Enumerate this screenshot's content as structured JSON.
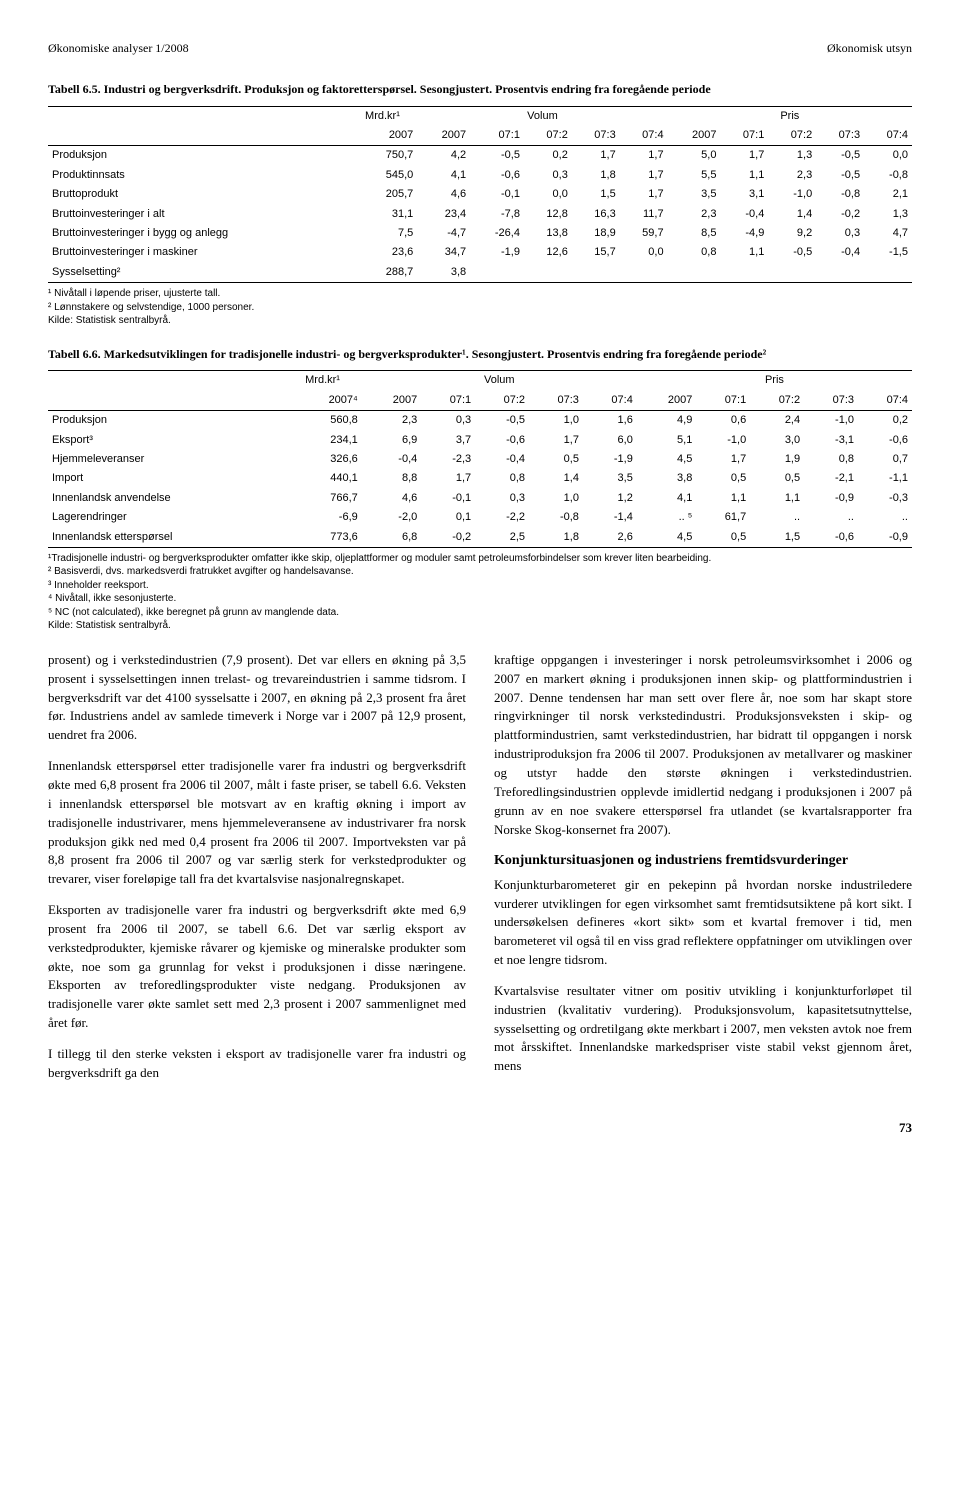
{
  "header": {
    "left": "Økonomiske analyser 1/2008",
    "right": "Økonomisk utsyn"
  },
  "table1": {
    "title": "Tabell 6.5. Industri og bergverksdrift. Produksjon og faktoretterspørsel. Sesongjustert. Prosentvis endring fra foregående periode",
    "header1_c1": "Mrd.kr¹",
    "header1_volum": "Volum",
    "header1_pris": "Pris",
    "header2": [
      "",
      "2007",
      "2007",
      "07:1",
      "07:2",
      "07:3",
      "07:4",
      "2007",
      "07:1",
      "07:2",
      "07:3",
      "07:4"
    ],
    "rows": [
      [
        "Produksjon",
        "750,7",
        "4,2",
        "-0,5",
        "0,2",
        "1,7",
        "1,7",
        "5,0",
        "1,7",
        "1,3",
        "-0,5",
        "0,0"
      ],
      [
        "Produktinnsats",
        "545,0",
        "4,1",
        "-0,6",
        "0,3",
        "1,8",
        "1,7",
        "5,5",
        "1,1",
        "2,3",
        "-0,5",
        "-0,8"
      ],
      [
        "Bruttoprodukt",
        "205,7",
        "4,6",
        "-0,1",
        "0,0",
        "1,5",
        "1,7",
        "3,5",
        "3,1",
        "-1,0",
        "-0,8",
        "2,1"
      ],
      [
        "Bruttoinvesteringer i alt",
        "31,1",
        "23,4",
        "-7,8",
        "12,8",
        "16,3",
        "11,7",
        "2,3",
        "-0,4",
        "1,4",
        "-0,2",
        "1,3"
      ],
      [
        "Bruttoinvesteringer i bygg og anlegg",
        "7,5",
        "-4,7",
        "-26,4",
        "13,8",
        "18,9",
        "59,7",
        "8,5",
        "-4,9",
        "9,2",
        "0,3",
        "4,7"
      ],
      [
        "Bruttoinvesteringer i maskiner",
        "23,6",
        "34,7",
        "-1,9",
        "12,6",
        "15,7",
        "0,0",
        "0,8",
        "1,1",
        "-0,5",
        "-0,4",
        "-1,5"
      ],
      [
        "Sysselsetting²",
        "288,7",
        "3,8",
        "",
        "",
        "",
        "",
        "",
        "",
        "",
        "",
        ""
      ]
    ],
    "footnotes": [
      "¹ Nivåtall i løpende priser, ujusterte tall.",
      "² Lønnstakere og selvstendige, 1000 personer.",
      "Kilde: Statistisk sentralbyrå."
    ]
  },
  "table2": {
    "title": "Tabell 6.6. Markedsutviklingen for tradisjonelle industri- og bergverksprodukter¹. Sesongjustert. Prosentvis endring fra foregående periode²",
    "header1_c1": "Mrd.kr¹",
    "header1_volum": "Volum",
    "header1_pris": "Pris",
    "header2": [
      "",
      "2007⁴",
      "2007",
      "07:1",
      "07:2",
      "07:3",
      "07:4",
      "2007",
      "07:1",
      "07:2",
      "07:3",
      "07:4"
    ],
    "rows": [
      [
        "Produksjon",
        "560,8",
        "2,3",
        "0,3",
        "-0,5",
        "1,0",
        "1,6",
        "4,9",
        "0,6",
        "2,4",
        "-1,0",
        "0,2"
      ],
      [
        "Eksport³",
        "234,1",
        "6,9",
        "3,7",
        "-0,6",
        "1,7",
        "6,0",
        "5,1",
        "-1,0",
        "3,0",
        "-3,1",
        "-0,6"
      ],
      [
        "Hjemmeleveranser",
        "326,6",
        "-0,4",
        "-2,3",
        "-0,4",
        "0,5",
        "-1,9",
        "4,5",
        "1,7",
        "1,9",
        "0,8",
        "0,7"
      ],
      [
        "Import",
        "440,1",
        "8,8",
        "1,7",
        "0,8",
        "1,4",
        "3,5",
        "3,8",
        "0,5",
        "0,5",
        "-2,1",
        "-1,1"
      ],
      [
        "Innenlandsk anvendelse",
        "766,7",
        "4,6",
        "-0,1",
        "0,3",
        "1,0",
        "1,2",
        "4,1",
        "1,1",
        "1,1",
        "-0,9",
        "-0,3"
      ],
      [
        "Lagerendringer",
        "-6,9",
        "-2,0",
        "0,1",
        "-2,2",
        "-0,8",
        "-1,4",
        ".. ⁵",
        "61,7",
        "..",
        "..",
        ".."
      ],
      [
        "Innenlandsk etterspørsel",
        "773,6",
        "6,8",
        "-0,2",
        "2,5",
        "1,8",
        "2,6",
        "4,5",
        "0,5",
        "1,5",
        "-0,6",
        "-0,9"
      ]
    ],
    "footnotes": [
      "¹Tradisjonelle industri- og bergverksprodukter omfatter ikke skip, oljeplattformer og moduler samt petroleumsforbindelser som krever liten bearbeiding.",
      "² Basisverdi, dvs. markedsverdi fratrukket avgifter og handelsavanse.",
      "³ Inneholder reeksport.",
      "⁴ Nivåtall, ikke sesonjusterte.",
      "⁵ NC (not calculated), ikke beregnet på grunn av manglende data.",
      "Kilde: Statistisk sentralbyrå."
    ]
  },
  "body": {
    "left": [
      "prosent) og i verkstedindustrien (7,9 prosent). Det var ellers en økning på 3,5 prosent i sysselsettingen innen trelast- og trevareindustrien i samme tidsrom. I bergverksdrift var det 4100 sysselsatte i 2007, en økning på 2,3 prosent fra året før. Industriens andel av samlede timeverk i Norge var i 2007 på 12,9 prosent, uendret fra 2006.",
      "Innenlandsk etterspørsel etter tradisjonelle varer fra industri og bergverksdrift økte med 6,8 prosent fra 2006 til 2007, målt i faste priser, se tabell 6.6. Veksten i innenlandsk etterspørsel ble motsvart av en kraftig økning i import av tradisjonelle industrivarer, mens hjemmeleveransene av industrivarer fra norsk produksjon gikk ned med 0,4 prosent fra 2006 til 2007. Importveksten var på 8,8 prosent fra 2006 til 2007 og var særlig sterk for verkstedprodukter og trevarer, viser foreløpige tall fra det kvartalsvise nasjonalregnskapet.",
      "Eksporten av tradisjonelle varer fra industri og bergverksdrift økte med 6,9 prosent fra 2006 til 2007, se tabell 6.6. Det var særlig eksport av verkstedprodukter, kjemiske råvarer og kjemiske og mineralske produkter som økte, noe som ga grunnlag for vekst i produksjonen i disse næringene. Eksporten av treforedlingsprodukter viste nedgang. Produksjonen av tradisjonelle varer økte samlet sett med 2,3 prosent i 2007 sammenlignet med året før.",
      "I tillegg til den sterke veksten i eksport av tradisjonelle varer fra industri og bergverksdrift ga den"
    ],
    "right": [
      "kraftige oppgangen i investeringer i norsk petroleumsvirksomhet i 2006 og 2007 en markert økning i produksjonen innen skip- og plattformindustrien i 2007. Denne tendensen har man sett over flere år, noe som har skapt store ringvirkninger til norsk verkstedindustri. Produksjonsveksten i skip- og plattformindustrien, samt verkstedindustrien, har bidratt til oppgangen i norsk industriproduksjon fra 2006 til 2007. Produksjonen av metallvarer og maskiner og utstyr hadde den største økningen i verkstedindustrien. Treforedlingsindustrien opplevde imidlertid nedgang i produksjonen i 2007 på grunn av en noe svakere etterspørsel fra utlandet (se kvartalsrapporter fra Norske Skog-konsernet fra 2007)."
    ],
    "subhead": "Konjunktursituasjonen og industriens fremtidsvurderinger",
    "right2": [
      "Konjunkturbarometeret gir en pekepinn på hvordan norske industriledere vurderer utviklingen for egen virksomhet samt fremtidsutsiktene på kort sikt. I undersøkelsen defineres «kort sikt» som et kvartal fremover i tid, men barometeret vil også til en viss grad reflektere oppfatninger om utviklingen over et noe lengre tidsrom.",
      "Kvartalsvise resultater vitner om positiv utvikling i konjunkturforløpet til industrien (kvalitativ vurdering). Produksjonsvolum, kapasitetsutnyttelse, sysselsetting og ordretilgang økte merkbart i 2007, men veksten avtok noe frem mot årsskiftet. Innenlandske markedspriser viste stabil vekst gjennom året, mens"
    ]
  },
  "pageNum": "73"
}
